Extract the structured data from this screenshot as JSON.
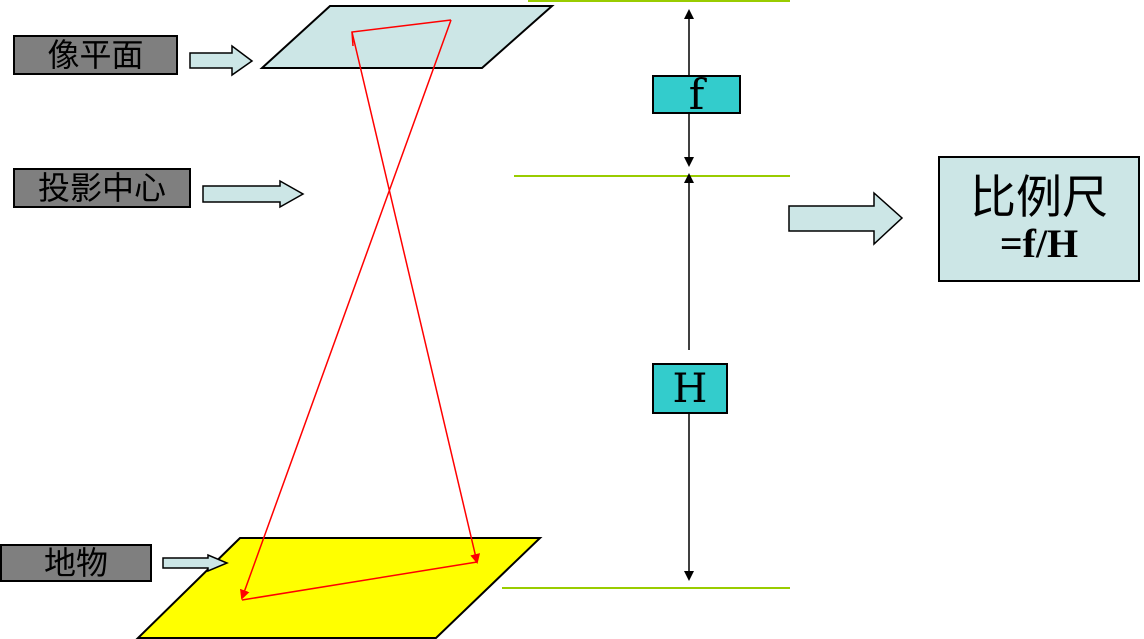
{
  "labels": {
    "image_plane": "像平面",
    "projection_center": "投影中心",
    "ground_object": "地物"
  },
  "dimensions": {
    "focal": "f",
    "height": "H"
  },
  "result": {
    "title": "比例尺",
    "formula": "=f/H"
  },
  "colors": {
    "image_plane_fill": "#cce6e6",
    "ground_fill": "#ffff00",
    "ray": "#ff0000",
    "level_line": "#99cc00",
    "tag_fill": "#33cccc",
    "label_fill": "#7f7f7f",
    "arrow_fill": "#cce6e6"
  }
}
